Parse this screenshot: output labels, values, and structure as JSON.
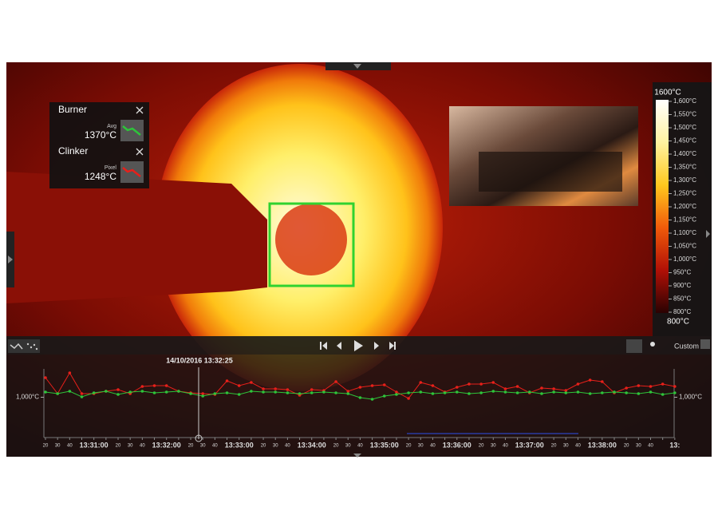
{
  "measurements": [
    {
      "label": "Burner",
      "kind": "Avg",
      "value": "1370°C"
    },
    {
      "label": "Clinker",
      "kind": "Pixel",
      "value": "1248°C"
    }
  ],
  "colorbar": {
    "max_label": "1600°C",
    "min_label": "800°C",
    "ticks": [
      "1,600°C",
      "1,550°C",
      "1,500°C",
      "1,450°C",
      "1,400°C",
      "1,350°C",
      "1,300°C",
      "1,250°C",
      "1,200°C",
      "1,150°C",
      "1,100°C",
      "1,050°C",
      "1,000°C",
      "950°C",
      "900°C",
      "850°C",
      "800°C"
    ]
  },
  "toolbar": {
    "preset": "Custom"
  },
  "timeline": {
    "timestamp": "14/10/2016 13:32:25",
    "ylim": [
      850,
      1150
    ],
    "yticks": [
      {
        "value": 1000,
        "label": "1,000°C"
      }
    ],
    "categories": [
      "20",
      "30",
      "40",
      null,
      "13:31:00",
      null,
      "20",
      "30",
      "40",
      null,
      "13:32:00",
      null,
      "20",
      "30",
      "40",
      null,
      "13:33:00",
      null,
      "20",
      "30",
      "40",
      null,
      "13:34:00",
      null,
      "20",
      "30",
      "40",
      null,
      "13:35:00",
      null,
      "20",
      "30",
      "40",
      null,
      "13:36:00",
      null,
      "20",
      "30",
      "40",
      null,
      "13:37:00",
      null,
      "20",
      "30",
      "40",
      null,
      "13:38:00",
      null,
      "20",
      "30",
      "40",
      null,
      "13:"
    ],
    "series": [
      {
        "name": "Clinker",
        "color": "#e8201a",
        "values": [
          1098,
          1018,
          1122,
          1018,
          1018,
          1030,
          1038,
          1018,
          1054,
          1058,
          1058,
          1030,
          1022,
          1018,
          1014,
          1082,
          1058,
          1074,
          1042,
          1042,
          1038,
          1010,
          1038,
          1034,
          1078,
          1030,
          1050,
          1058,
          1062,
          1026,
          994,
          1074,
          1058,
          1026,
          1050,
          1066,
          1066,
          1074,
          1042,
          1054,
          1022,
          1046,
          1042,
          1034,
          1066,
          1086,
          1078,
          1022,
          1046,
          1058,
          1054,
          1066,
          1054
        ]
      },
      {
        "name": "Burner",
        "color": "#2ec43a",
        "values": [
          1026,
          1018,
          1030,
          1002,
          1022,
          1030,
          1014,
          1026,
          1030,
          1022,
          1026,
          1030,
          1018,
          1006,
          1018,
          1022,
          1014,
          1030,
          1026,
          1026,
          1022,
          1018,
          1022,
          1026,
          1022,
          1018,
          998,
          990,
          1006,
          1014,
          1022,
          1026,
          1018,
          1022,
          1026,
          1018,
          1022,
          1030,
          1026,
          1022,
          1026,
          1018,
          1026,
          1022,
          1026,
          1018,
          1022,
          1026,
          1022,
          1018,
          1026,
          1014,
          1022
        ]
      }
    ]
  }
}
